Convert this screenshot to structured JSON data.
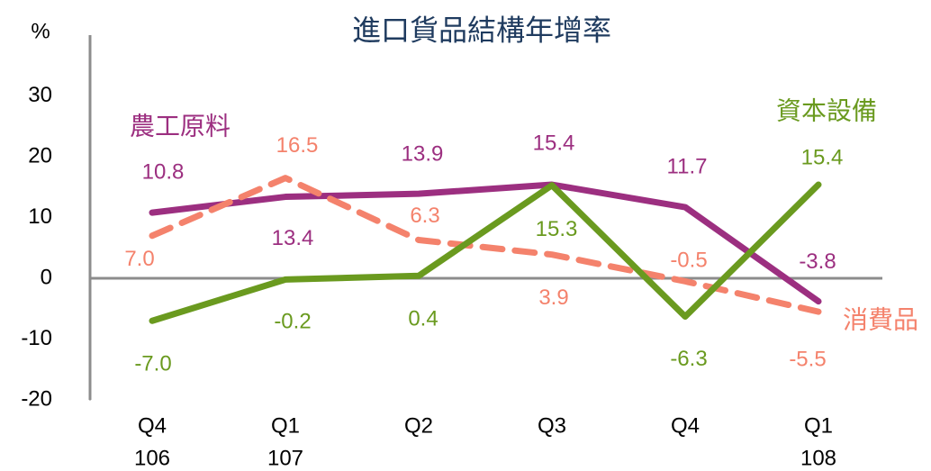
{
  "chart_data": {
    "type": "line",
    "title": "進口貨品結構年增率",
    "y_unit": "%",
    "categories": [
      [
        "Q4",
        "106"
      ],
      [
        "Q1",
        "107"
      ],
      [
        "Q2"
      ],
      [
        "Q3"
      ],
      [
        "Q4"
      ],
      [
        "Q1",
        "108"
      ]
    ],
    "series": [
      {
        "name": "農工原料",
        "color": "#9c2f80",
        "dashed": false,
        "values": [
          10.8,
          13.4,
          13.9,
          15.4,
          11.7,
          -3.8
        ],
        "value_labels": [
          "10.8",
          "13.4",
          "13.9",
          "15.4",
          "11.7",
          "-3.8"
        ]
      },
      {
        "name": "消費品",
        "color": "#f4826c",
        "dashed": true,
        "values": [
          7.0,
          16.5,
          6.3,
          3.9,
          -0.5,
          -5.5
        ],
        "value_labels": [
          "7.0",
          "16.5",
          "6.3",
          "3.9",
          "-0.5",
          "-5.5"
        ]
      },
      {
        "name": "資本設備",
        "color": "#6a9a1f",
        "dashed": false,
        "values": [
          -7.0,
          -0.2,
          0.4,
          15.3,
          -6.3,
          15.4
        ],
        "value_labels": [
          "-7.0",
          "-0.2",
          "0.4",
          "15.3",
          "-6.3",
          "15.4"
        ]
      }
    ],
    "ylim": [
      -20,
      40
    ],
    "yticks": [
      -20,
      -10,
      0,
      10,
      20,
      30
    ]
  }
}
